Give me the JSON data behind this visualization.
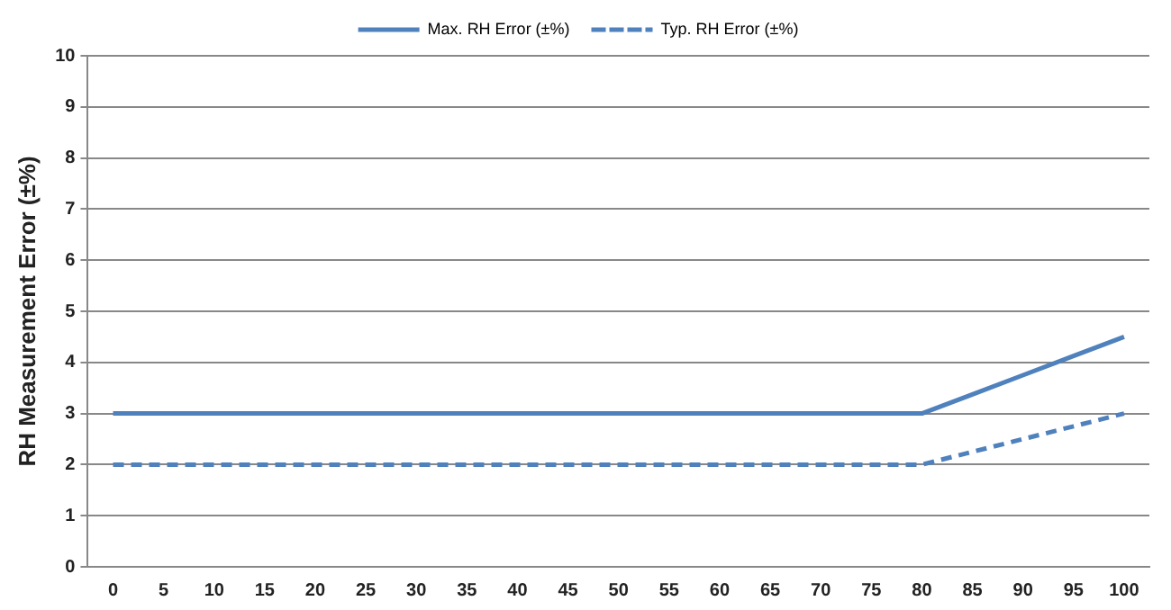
{
  "chart_data": {
    "type": "line",
    "ylabel": "RH Measurement Error (±%)",
    "categories": [
      "0",
      "5",
      "10",
      "15",
      "20",
      "25",
      "30",
      "35",
      "40",
      "45",
      "50",
      "55",
      "60",
      "65",
      "70",
      "75",
      "80",
      "85",
      "90",
      "95",
      "100"
    ],
    "series": [
      {
        "name": "Max. RH Error (±%)",
        "color": "#4f81bd",
        "line_style": "solid",
        "values": [
          3,
          3,
          3,
          3,
          3,
          3,
          3,
          3,
          3,
          3,
          3,
          3,
          3,
          3,
          3,
          3,
          3,
          3.375,
          3.75,
          4.125,
          4.5
        ]
      },
      {
        "name": "Typ. RH Error (±%)",
        "color": "#4f81bd",
        "line_style": "dashed",
        "values": [
          2,
          2,
          2,
          2,
          2,
          2,
          2,
          2,
          2,
          2,
          2,
          2,
          2,
          2,
          2,
          2,
          2,
          2.25,
          2.5,
          2.75,
          3
        ]
      }
    ],
    "ylim": [
      0,
      10
    ],
    "yticks": [
      0,
      1,
      2,
      3,
      4,
      5,
      6,
      7,
      8,
      9,
      10
    ],
    "grid": "y",
    "legend": "top",
    "marker": "none"
  }
}
